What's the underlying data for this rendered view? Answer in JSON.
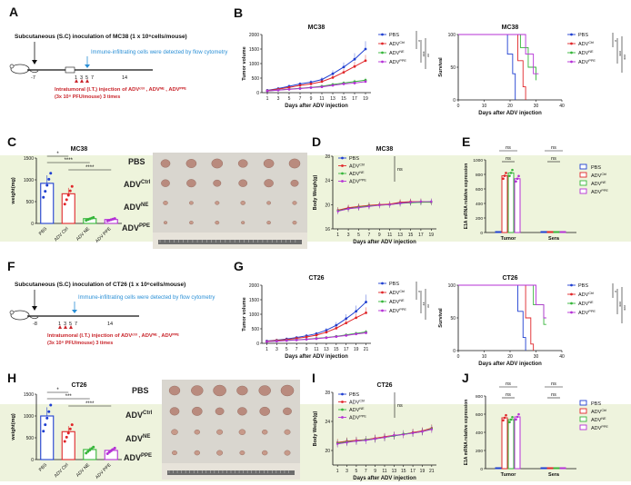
{
  "panel_letters": [
    "A",
    "B",
    "C",
    "D",
    "E",
    "F",
    "G",
    "H",
    "I",
    "J"
  ],
  "colors": {
    "pbs": "#1f3fd1",
    "ctrl": "#e0262a",
    "ne": "#36b53a",
    "ppe": "#b531d6"
  },
  "a": {
    "line1": "Subcutaneous (S.C) inoculation of MC38  (1 x 10⁶cells/mouse)",
    "line2": "Immune-infiltrating cells were detected by flow cytometry",
    "red1": "Intratumoral (I.T.) injection of ADVᶜᵗʳˡ , ADVᴺᴱ , ADVᴾᴾᴱ",
    "red2": "(3x 10⁸ PFU/mouse) 3 times",
    "ticks": [
      "-7",
      "1",
      "3",
      "5",
      "7",
      "14"
    ]
  },
  "f": {
    "line1": "Subcutaneous (S.C) inoculation of CT26  (1 x 10⁶cells/mouse)",
    "line2": "Immune-infiltrating cells were detected by flow cytometry",
    "red1": "Intratumoral (I.T.) injection of ADVᶜᵗʳˡ , ADVᴺᴱ , ADVᴾᴾᴱ",
    "red2": "(3x 10⁸ PFU/mouse) 3 times",
    "ticks": [
      "-8",
      "1",
      "3",
      "5",
      "7",
      "14"
    ]
  },
  "groups": {
    "pbs": "PBS",
    "ctrl": "ADV",
    "ctrl_sup": "Ctrl",
    "ne": "ADV",
    "ne_sup": "NE",
    "ppe": "ADV",
    "ppe_sup": "PPE"
  },
  "chart_data": [
    {
      "id": "B-left",
      "type": "line",
      "title": "MC38",
      "xlabel": "Days after ADV injection",
      "ylabel": "Tumor volume",
      "x": [
        1,
        3,
        5,
        7,
        9,
        11,
        13,
        15,
        17,
        19
      ],
      "ylim": [
        0,
        2000
      ],
      "yticks": [
        0,
        500,
        1000,
        1500,
        2000
      ],
      "series": [
        {
          "name": "PBS",
          "values": [
            80,
            140,
            220,
            300,
            360,
            450,
            650,
            880,
            1150,
            1500
          ]
        },
        {
          "name": "ADV Ctrl",
          "values": [
            70,
            120,
            180,
            250,
            300,
            380,
            520,
            700,
            900,
            1100
          ]
        },
        {
          "name": "ADV NE",
          "values": [
            60,
            90,
            120,
            150,
            180,
            220,
            280,
            330,
            380,
            430
          ]
        },
        {
          "name": "ADV PPE",
          "values": [
            60,
            85,
            115,
            140,
            170,
            200,
            250,
            300,
            330,
            380
          ]
        }
      ],
      "significance": [
        "*",
        "***",
        "**"
      ]
    },
    {
      "id": "B-right",
      "type": "line",
      "title": "MC38",
      "xlabel": "Days after ADV injection",
      "ylabel": "Survival",
      "x": [
        0,
        10,
        20,
        30,
        40
      ],
      "ylim": [
        0,
        100
      ],
      "yticks": [
        0,
        50,
        100
      ],
      "series": [
        {
          "name": "PBS",
          "steps": [
            [
              0,
              100
            ],
            [
              19,
              100
            ],
            [
              19,
              70
            ],
            [
              21,
              40
            ],
            [
              22,
              0
            ]
          ]
        },
        {
          "name": "ADV Ctrl",
          "steps": [
            [
              0,
              100
            ],
            [
              23,
              100
            ],
            [
              23,
              60
            ],
            [
              25,
              20
            ],
            [
              26,
              0
            ]
          ]
        },
        {
          "name": "ADV NE",
          "steps": [
            [
              0,
              100
            ],
            [
              24,
              100
            ],
            [
              24,
              80
            ],
            [
              27,
              50
            ],
            [
              30,
              30
            ]
          ]
        },
        {
          "name": "ADV PPE",
          "steps": [
            [
              0,
              100
            ],
            [
              26,
              100
            ],
            [
              26,
              70
            ],
            [
              29,
              40
            ],
            [
              31,
              40
            ]
          ]
        }
      ],
      "significance": [
        "*",
        "***",
        "***"
      ]
    },
    {
      "id": "C",
      "type": "bar",
      "title": "MC38",
      "ylabel": "weight(mg)",
      "categories": [
        "PBS",
        "ADV Ctrl",
        "ADV NE",
        "ADV PPE"
      ],
      "values": [
        920,
        680,
        110,
        90
      ],
      "ylim": [
        0,
        1500
      ],
      "yticks": [
        0,
        500,
        1000,
        1500
      ],
      "significance": [
        "*",
        "****",
        "****"
      ]
    },
    {
      "id": "D",
      "type": "line",
      "title": "MC38",
      "xlabel": "Days after ADV injection",
      "ylabel": "Body Weigh(g)",
      "x": [
        1,
        3,
        5,
        7,
        9,
        11,
        13,
        15,
        17,
        19
      ],
      "ylim": [
        16,
        28
      ],
      "yticks": [
        16,
        20,
        24,
        28
      ],
      "series": [
        {
          "name": "PBS",
          "values": [
            19.0,
            19.4,
            19.6,
            19.8,
            20.0,
            20.0,
            20.3,
            20.4,
            20.4,
            20.5
          ]
        },
        {
          "name": "ADV Ctrl",
          "values": [
            19.1,
            19.5,
            19.7,
            19.9,
            20.0,
            20.1,
            20.4,
            20.5,
            20.5,
            20.4
          ]
        },
        {
          "name": "ADV NE",
          "values": [
            19.0,
            19.3,
            19.6,
            19.8,
            19.9,
            20.0,
            20.2,
            20.3,
            20.4,
            20.4
          ]
        },
        {
          "name": "ADV PPE",
          "values": [
            18.9,
            19.3,
            19.5,
            19.7,
            19.9,
            20.0,
            20.2,
            20.4,
            20.5,
            20.5
          ]
        }
      ],
      "significance": [
        "ns"
      ]
    },
    {
      "id": "E",
      "type": "bar",
      "ylabel": "E1A mRNA relative expression",
      "categories": [
        "Tumor",
        "Sera"
      ],
      "series": [
        {
          "name": "PBS",
          "values": [
            0,
            0
          ]
        },
        {
          "name": "ADV Ctrl",
          "values": [
            780,
            0
          ]
        },
        {
          "name": "ADV NE",
          "values": [
            820,
            0
          ]
        },
        {
          "name": "ADV PPE",
          "values": [
            740,
            0
          ]
        }
      ],
      "ylim": [
        0,
        1000
      ],
      "yticks": [
        0,
        200,
        400,
        600,
        800,
        1000
      ],
      "significance": [
        "ns",
        "ns",
        "ns",
        "ns"
      ]
    },
    {
      "id": "G-left",
      "type": "line",
      "title": "CT26",
      "xlabel": "Days after ADV injection",
      "ylabel": "Tumor volume",
      "x": [
        1,
        3,
        5,
        7,
        9,
        11,
        13,
        15,
        17,
        19,
        21
      ],
      "ylim": [
        0,
        2000
      ],
      "yticks": [
        0,
        500,
        1000,
        1500,
        2000
      ],
      "series": [
        {
          "name": "PBS",
          "values": [
            80,
            110,
            150,
            200,
            260,
            330,
            450,
            620,
            850,
            1100,
            1420
          ]
        },
        {
          "name": "ADV Ctrl",
          "values": [
            70,
            100,
            130,
            170,
            220,
            280,
            380,
            520,
            700,
            880,
            1050
          ]
        },
        {
          "name": "ADV NE",
          "values": [
            60,
            80,
            100,
            120,
            140,
            170,
            200,
            240,
            290,
            340,
            390
          ]
        },
        {
          "name": "ADV PPE",
          "values": [
            60,
            75,
            95,
            115,
            135,
            160,
            190,
            230,
            270,
            320,
            360
          ]
        }
      ],
      "significance": [
        "*",
        "**",
        "**"
      ]
    },
    {
      "id": "G-right",
      "type": "line",
      "title": "CT26",
      "xlabel": "Days after ADV injection",
      "ylabel": "Survival",
      "x": [
        0,
        10,
        20,
        30,
        40
      ],
      "ylim": [
        0,
        100
      ],
      "yticks": [
        0,
        50,
        100
      ],
      "series": [
        {
          "name": "PBS",
          "steps": [
            [
              0,
              100
            ],
            [
              23,
              100
            ],
            [
              23,
              60
            ],
            [
              25,
              20
            ],
            [
              26,
              0
            ]
          ]
        },
        {
          "name": "ADV Ctrl",
          "steps": [
            [
              0,
              100
            ],
            [
              26,
              100
            ],
            [
              26,
              50
            ],
            [
              28,
              10
            ],
            [
              29,
              0
            ]
          ]
        },
        {
          "name": "ADV NE",
          "steps": [
            [
              0,
              100
            ],
            [
              29,
              100
            ],
            [
              29,
              70
            ],
            [
              33,
              40
            ],
            [
              34,
              40
            ]
          ]
        },
        {
          "name": "ADV PPE",
          "steps": [
            [
              0,
              100
            ],
            [
              30,
              100
            ],
            [
              30,
              70
            ],
            [
              33,
              50
            ],
            [
              34,
              50
            ]
          ]
        }
      ],
      "significance": [
        "*",
        "***",
        "***"
      ]
    },
    {
      "id": "H",
      "type": "bar",
      "title": "CT26",
      "ylabel": "weight(mg)",
      "categories": [
        "PBS",
        "ADV Ctrl",
        "ADV NE",
        "ADV PPE"
      ],
      "values": [
        1000,
        640,
        230,
        210
      ],
      "ylim": [
        0,
        1500
      ],
      "yticks": [
        0,
        500,
        1000,
        1500
      ],
      "significance": [
        "*",
        "***",
        "****"
      ]
    },
    {
      "id": "I",
      "type": "line",
      "title": "CT26",
      "xlabel": "Days after ADV injection",
      "ylabel": "Body Weigh(g)",
      "x": [
        1,
        3,
        5,
        7,
        9,
        11,
        13,
        15,
        17,
        19,
        21
      ],
      "ylim": [
        18,
        28
      ],
      "yticks": [
        20,
        24,
        28
      ],
      "series": [
        {
          "name": "PBS",
          "values": [
            21.0,
            21.2,
            21.3,
            21.4,
            21.6,
            21.8,
            22.0,
            22.2,
            22.4,
            22.6,
            23.0
          ]
        },
        {
          "name": "ADV Ctrl",
          "values": [
            21.1,
            21.3,
            21.4,
            21.5,
            21.7,
            21.9,
            22.1,
            22.2,
            22.5,
            22.7,
            23.1
          ]
        },
        {
          "name": "ADV NE",
          "values": [
            21.0,
            21.2,
            21.3,
            21.5,
            21.6,
            21.8,
            22.0,
            22.3,
            22.4,
            22.6,
            23.0
          ]
        },
        {
          "name": "ADV PPE",
          "values": [
            20.9,
            21.1,
            21.3,
            21.4,
            21.6,
            21.8,
            22.1,
            22.2,
            22.4,
            22.6,
            22.9
          ]
        }
      ],
      "significance": [
        "ns"
      ]
    },
    {
      "id": "J",
      "type": "bar",
      "ylabel": "E1A mRNA relative expression",
      "categories": [
        "Tumor",
        "Sera"
      ],
      "series": [
        {
          "name": "PBS",
          "values": [
            0,
            0
          ]
        },
        {
          "name": "ADV Ctrl",
          "values": [
            560,
            0
          ]
        },
        {
          "name": "ADV NE",
          "values": [
            540,
            0
          ]
        },
        {
          "name": "ADV PPE",
          "values": [
            570,
            0
          ]
        }
      ],
      "ylim": [
        0,
        800
      ],
      "yticks": [
        0,
        200,
        400,
        600,
        800
      ],
      "significance": [
        "ns",
        "ns",
        "ns",
        "ns"
      ]
    }
  ]
}
